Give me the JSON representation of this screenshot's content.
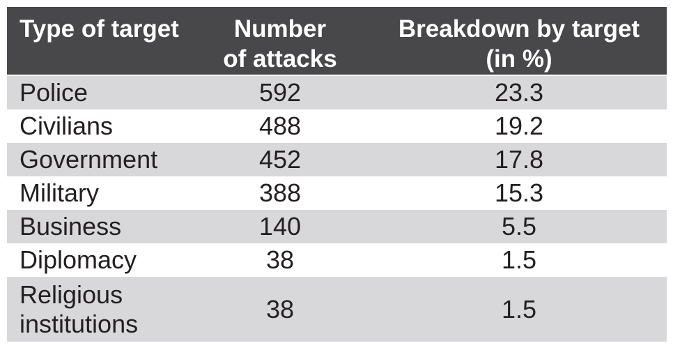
{
  "figure": {
    "header": {
      "col1": "Type of target",
      "col2_line1": "Number",
      "col2_line2": "of attacks",
      "col3_line1": "Breakdown by target",
      "col3_line2": "(in %)"
    },
    "rows": [
      {
        "target": "Police",
        "attacks": "592",
        "pct": "23.3"
      },
      {
        "target": "Civilians",
        "attacks": "488",
        "pct": "19.2"
      },
      {
        "target": "Government",
        "attacks": "452",
        "pct": "17.8"
      },
      {
        "target": "Military",
        "attacks": "388",
        "pct": "15.3"
      },
      {
        "target": "Business",
        "attacks": "140",
        "pct": "5.5"
      },
      {
        "target": "Diplomacy",
        "attacks": "38",
        "pct": "1.5"
      },
      {
        "target": "Religious institutions",
        "attacks": "38",
        "pct": "1.5"
      }
    ],
    "colors": {
      "header_bg": "#48484a",
      "stripe_bg": "#d8d8da",
      "header_text": "#ffffff",
      "body_text": "#231f20"
    }
  },
  "chart_data": {
    "type": "table",
    "columns": [
      "Type of target",
      "Number of attacks",
      "Breakdown by target (in %)"
    ],
    "rows": [
      [
        "Police",
        592,
        23.3
      ],
      [
        "Civilians",
        488,
        19.2
      ],
      [
        "Government",
        452,
        17.8
      ],
      [
        "Military",
        388,
        15.3
      ],
      [
        "Business",
        140,
        5.5
      ],
      [
        "Diplomacy",
        38,
        1.5
      ],
      [
        "Religious institutions",
        38,
        1.5
      ]
    ]
  }
}
